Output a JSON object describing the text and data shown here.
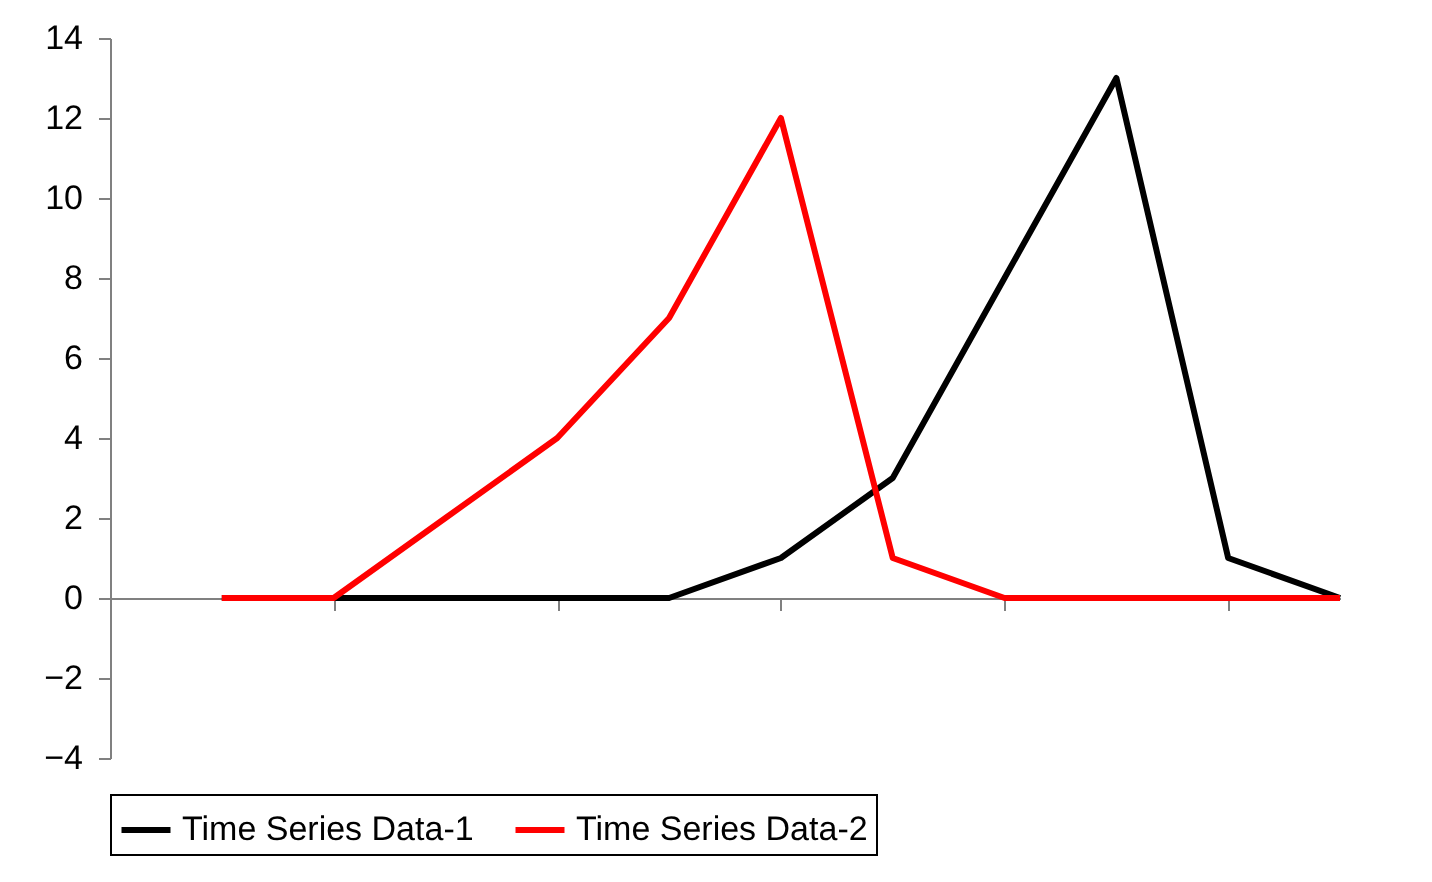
{
  "chart_data": {
    "type": "line",
    "categories": [
      null,
      null,
      null,
      null,
      null,
      null,
      null,
      null,
      null,
      null,
      null,
      null
    ],
    "series": [
      {
        "name": "Time Series Data-1",
        "color": "#000000",
        "values": [
          null,
          0,
          0,
          0,
          0,
          0,
          1,
          3,
          8,
          13,
          1,
          0
        ]
      },
      {
        "name": "Time Series Data-2",
        "color": "#ff0000",
        "values": [
          null,
          0,
          0,
          2,
          4,
          7,
          12,
          1,
          0,
          0,
          0,
          0
        ]
      }
    ],
    "ylim": [
      -4,
      14
    ],
    "yticks": [
      -4,
      -2,
      0,
      2,
      4,
      6,
      8,
      10,
      12,
      14
    ],
    "legend": "bottom",
    "marker": "none",
    "line_style": "solid"
  }
}
